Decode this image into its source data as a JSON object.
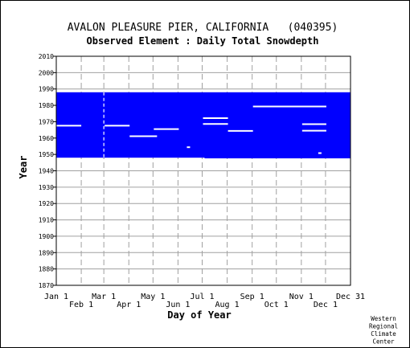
{
  "chart_data": {
    "type": "bar",
    "title": "AVALON PLEASURE PIER, CALIFORNIA   (040395)",
    "subtitle": "Observed Element : Daily Total Snowdepth",
    "xlabel": "Day of Year",
    "ylabel": "Year",
    "credit": [
      "Western",
      "Regional",
      "Climate",
      "Center"
    ],
    "colors": {
      "data_fill": "#0000ff",
      "missing_segments": "#ffffff",
      "grid": "#a0a0a0",
      "axis": "#000000"
    },
    "grid": true,
    "ylim": [
      1870,
      2010
    ],
    "yticks": [
      2010,
      2000,
      1990,
      1980,
      1970,
      1960,
      1950,
      1940,
      1930,
      1920,
      1910,
      1900,
      1890,
      1880,
      1870
    ],
    "xlim": [
      1,
      366
    ],
    "xticks_top": [
      {
        "label": "Jan 1",
        "day": 1
      },
      {
        "label": "Mar 1",
        "day": 60
      },
      {
        "label": "May 1",
        "day": 121
      },
      {
        "label": "Jul 1",
        "day": 182
      },
      {
        "label": "Sep 1",
        "day": 244
      },
      {
        "label": "Nov 1",
        "day": 305
      },
      {
        "label": "Dec 31",
        "day": 366
      }
    ],
    "xticks_bottom": [
      {
        "label": "Feb 1",
        "day": 32
      },
      {
        "label": "Apr 1",
        "day": 91
      },
      {
        "label": "Jun 1",
        "day": 152
      },
      {
        "label": "Aug 1",
        "day": 213
      },
      {
        "label": "Oct 1",
        "day": 274
      },
      {
        "label": "Dec 1",
        "day": 335
      }
    ],
    "record_blocks": [
      {
        "day_start": 1,
        "day_end": 185,
        "year_start": 1948,
        "year_end": 1988
      },
      {
        "day_start": 185,
        "day_end": 366,
        "year_start": 1947.6,
        "year_end": 1988
      }
    ],
    "missing_segments": [
      {
        "day_start": 1,
        "day_end": 32,
        "year": 1967.6
      },
      {
        "day_start": 61,
        "day_end": 92,
        "year": 1967.6
      },
      {
        "day_start": 92,
        "day_end": 126,
        "year": 1961.1
      },
      {
        "day_start": 122,
        "day_end": 153,
        "year": 1965.5
      },
      {
        "day_start": 163,
        "day_end": 167,
        "year": 1954.4
      },
      {
        "day_start": 183,
        "day_end": 214,
        "year": 1972.2
      },
      {
        "day_start": 183,
        "day_end": 214,
        "year": 1968.6
      },
      {
        "day_start": 214,
        "day_end": 245,
        "year": 1964.4
      },
      {
        "day_start": 245,
        "day_end": 336,
        "year": 1979.3
      },
      {
        "day_start": 306,
        "day_end": 336,
        "year": 1968.5
      },
      {
        "day_start": 306,
        "day_end": 336,
        "year": 1964.5
      },
      {
        "day_start": 326,
        "day_end": 330,
        "year": 1950.8
      },
      {
        "day_start": 60,
        "day_end": 60,
        "year_start": 1948,
        "year_end": 1988
      }
    ]
  }
}
